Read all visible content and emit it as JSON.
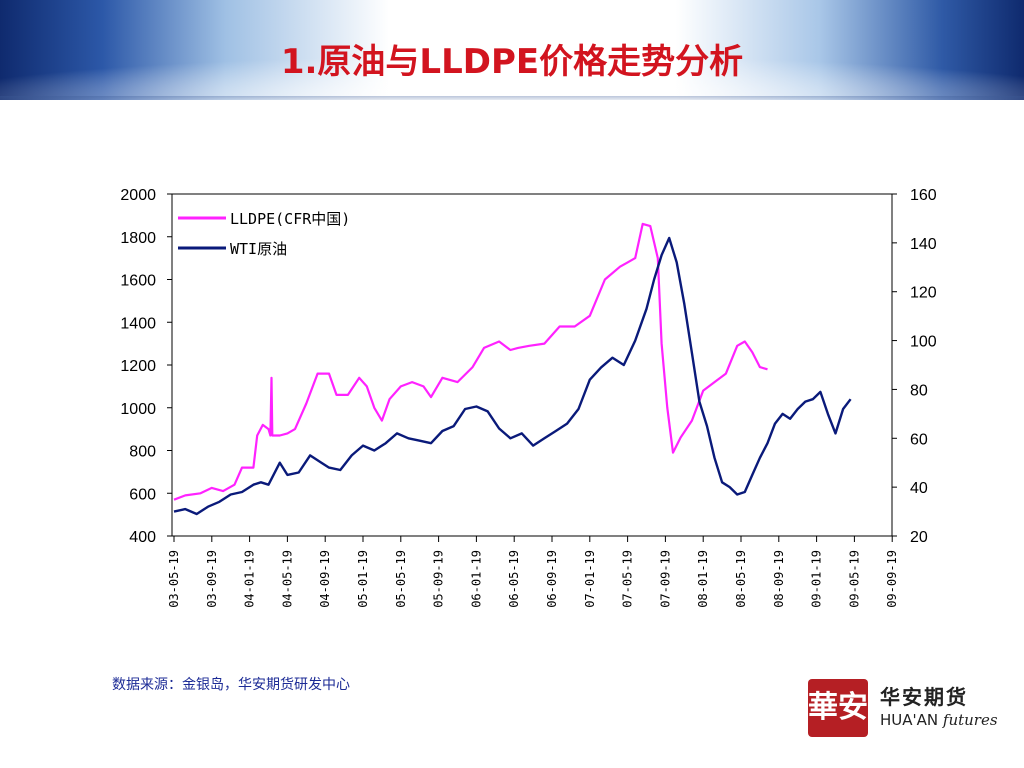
{
  "title": "1.原油与LLDPE价格走势分析",
  "source": "数据来源：金银岛，华安期货研发中心",
  "logo": {
    "seal": "華安",
    "cn": "华安期货",
    "en_main": "HUA'AN",
    "en_script": "futures"
  },
  "colors": {
    "title": "#d2141f",
    "lldpe": "#ff22ff",
    "wti": "#0a1a7a",
    "source_text": "#1c2b96"
  },
  "chart_data": {
    "type": "line",
    "x_ticks": [
      "03-05-19",
      "03-09-19",
      "04-01-19",
      "04-05-19",
      "04-09-19",
      "05-01-19",
      "05-05-19",
      "05-09-19",
      "06-01-19",
      "06-05-19",
      "06-09-19",
      "07-01-19",
      "07-05-19",
      "07-09-19",
      "08-01-19",
      "08-05-19",
      "08-09-19",
      "09-01-19",
      "09-05-19",
      "09-09-19"
    ],
    "y_left": {
      "min": 400,
      "max": 2000,
      "ticks": [
        400,
        600,
        800,
        1000,
        1200,
        1400,
        1600,
        1800,
        2000
      ]
    },
    "y_right": {
      "min": 20,
      "max": 160,
      "ticks": [
        20,
        40,
        60,
        80,
        100,
        120,
        140,
        160
      ]
    },
    "legend_position": "top-left",
    "grid": false,
    "series": [
      {
        "name": "LLDPE(CFR中国)",
        "axis": "left",
        "color": "#ff22ff",
        "points": [
          [
            0,
            570
          ],
          [
            0.3,
            590
          ],
          [
            0.7,
            600
          ],
          [
            1.0,
            625
          ],
          [
            1.3,
            610
          ],
          [
            1.6,
            640
          ],
          [
            1.8,
            720
          ],
          [
            2.0,
            720
          ],
          [
            2.1,
            720
          ],
          [
            2.2,
            870
          ],
          [
            2.35,
            920
          ],
          [
            2.5,
            900
          ],
          [
            2.55,
            870
          ],
          [
            2.58,
            1140
          ],
          [
            2.6,
            870
          ],
          [
            2.8,
            870
          ],
          [
            3.0,
            880
          ],
          [
            3.2,
            900
          ],
          [
            3.5,
            1020
          ],
          [
            3.8,
            1160
          ],
          [
            4.1,
            1160
          ],
          [
            4.3,
            1060
          ],
          [
            4.6,
            1060
          ],
          [
            4.9,
            1140
          ],
          [
            5.1,
            1100
          ],
          [
            5.3,
            1000
          ],
          [
            5.5,
            940
          ],
          [
            5.7,
            1040
          ],
          [
            6.0,
            1100
          ],
          [
            6.3,
            1120
          ],
          [
            6.6,
            1100
          ],
          [
            6.8,
            1050
          ],
          [
            7.1,
            1140
          ],
          [
            7.5,
            1120
          ],
          [
            7.9,
            1190
          ],
          [
            8.2,
            1280
          ],
          [
            8.6,
            1310
          ],
          [
            8.9,
            1270
          ],
          [
            9.1,
            1280
          ],
          [
            9.4,
            1290
          ],
          [
            9.8,
            1300
          ],
          [
            10.2,
            1380
          ],
          [
            10.6,
            1380
          ],
          [
            11.0,
            1430
          ],
          [
            11.4,
            1600
          ],
          [
            11.8,
            1660
          ],
          [
            12.0,
            1680
          ],
          [
            12.2,
            1700
          ],
          [
            12.4,
            1860
          ],
          [
            12.6,
            1850
          ],
          [
            12.8,
            1700
          ],
          [
            12.9,
            1300
          ],
          [
            13.05,
            1000
          ],
          [
            13.2,
            790
          ],
          [
            13.4,
            860
          ],
          [
            13.7,
            940
          ],
          [
            14.0,
            1080
          ],
          [
            14.3,
            1120
          ],
          [
            14.6,
            1160
          ],
          [
            14.9,
            1290
          ],
          [
            15.1,
            1310
          ],
          [
            15.3,
            1260
          ],
          [
            15.5,
            1190
          ],
          [
            15.7,
            1180
          ]
        ]
      },
      {
        "name": "WTI原油",
        "axis": "right",
        "color": "#0a1a7a",
        "points": [
          [
            0,
            30
          ],
          [
            0.3,
            31
          ],
          [
            0.6,
            29
          ],
          [
            0.9,
            32
          ],
          [
            1.2,
            34
          ],
          [
            1.5,
            37
          ],
          [
            1.8,
            38
          ],
          [
            2.1,
            41
          ],
          [
            2.3,
            42
          ],
          [
            2.5,
            41
          ],
          [
            2.8,
            50
          ],
          [
            3.0,
            45
          ],
          [
            3.3,
            46
          ],
          [
            3.6,
            53
          ],
          [
            3.9,
            50
          ],
          [
            4.1,
            48
          ],
          [
            4.4,
            47
          ],
          [
            4.7,
            53
          ],
          [
            5.0,
            57
          ],
          [
            5.3,
            55
          ],
          [
            5.6,
            58
          ],
          [
            5.9,
            62
          ],
          [
            6.2,
            60
          ],
          [
            6.5,
            59
          ],
          [
            6.8,
            58
          ],
          [
            7.1,
            63
          ],
          [
            7.4,
            65
          ],
          [
            7.7,
            72
          ],
          [
            8.0,
            73
          ],
          [
            8.3,
            71
          ],
          [
            8.6,
            64
          ],
          [
            8.9,
            60
          ],
          [
            9.2,
            62
          ],
          [
            9.5,
            57
          ],
          [
            9.8,
            60
          ],
          [
            10.1,
            63
          ],
          [
            10.4,
            66
          ],
          [
            10.7,
            72
          ],
          [
            11.0,
            84
          ],
          [
            11.3,
            89
          ],
          [
            11.6,
            93
          ],
          [
            11.9,
            90
          ],
          [
            12.2,
            100
          ],
          [
            12.5,
            113
          ],
          [
            12.7,
            125
          ],
          [
            12.9,
            135
          ],
          [
            13.1,
            142
          ],
          [
            13.3,
            132
          ],
          [
            13.5,
            115
          ],
          [
            13.7,
            95
          ],
          [
            13.9,
            75
          ],
          [
            14.1,
            65
          ],
          [
            14.3,
            52
          ],
          [
            14.5,
            42
          ],
          [
            14.7,
            40
          ],
          [
            14.9,
            37
          ],
          [
            15.1,
            38
          ],
          [
            15.3,
            45
          ],
          [
            15.5,
            52
          ],
          [
            15.7,
            58
          ],
          [
            15.9,
            66
          ],
          [
            16.1,
            70
          ],
          [
            16.3,
            68
          ],
          [
            16.5,
            72
          ],
          [
            16.7,
            75
          ],
          [
            16.9,
            76
          ],
          [
            17.1,
            79
          ],
          [
            17.3,
            70
          ],
          [
            17.5,
            62
          ],
          [
            17.7,
            72
          ],
          [
            17.9,
            76
          ]
        ]
      }
    ]
  }
}
